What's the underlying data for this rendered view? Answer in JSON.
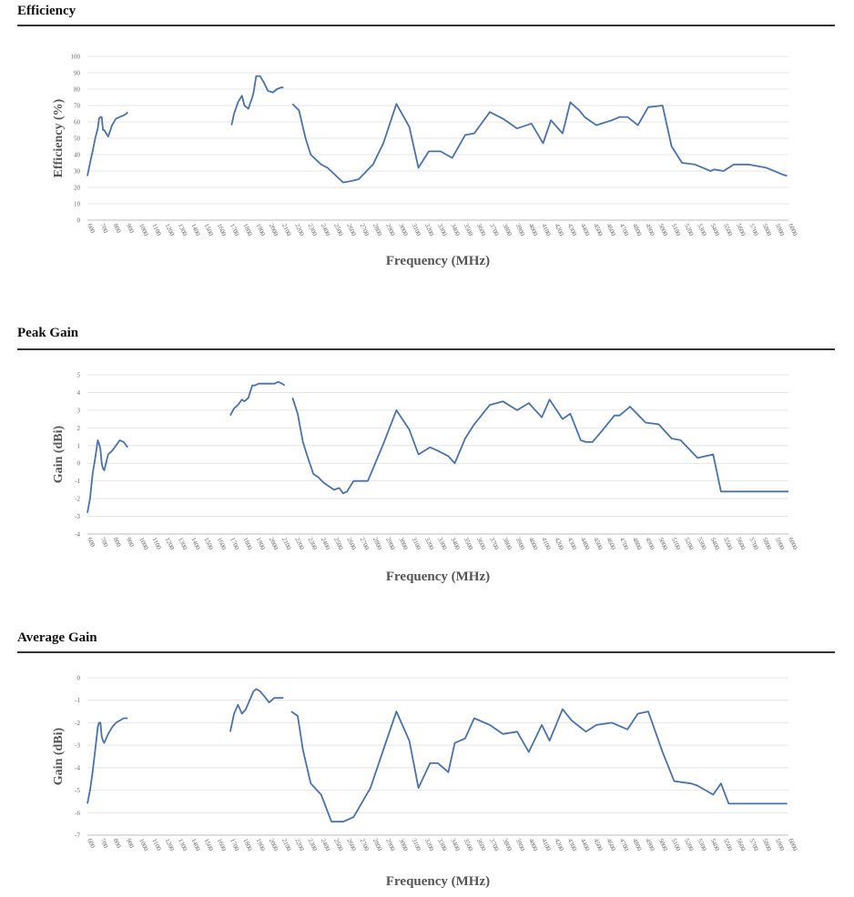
{
  "sections": [
    {
      "title": "Efficiency"
    },
    {
      "title": "Peak Gain"
    },
    {
      "title": "Average Gain"
    }
  ],
  "colors": {
    "line": "#4a72a8",
    "grid": "#e4e4e4",
    "axis": "#bdbdbd"
  },
  "chart_data": [
    {
      "type": "line",
      "title": "Efficiency",
      "xlabel": "Frequency (MHz)",
      "ylabel": "Efficiency (%)",
      "ylim": [
        0,
        100
      ],
      "yticks": [
        "0",
        "10",
        "20",
        "30",
        "40",
        "50",
        "60",
        "70",
        "80",
        "90",
        "100"
      ],
      "xlim": [
        600,
        6000
      ],
      "xticks": [
        "600",
        "700",
        "800",
        "900",
        "1000",
        "1100",
        "1200",
        "1300",
        "1400",
        "1500",
        "1600",
        "1700",
        "1800",
        "1900",
        "2000",
        "2100",
        "2200",
        "2300",
        "2400",
        "2500",
        "2600",
        "2700",
        "2800",
        "2900",
        "3000",
        "3100",
        "3200",
        "3300",
        "3400",
        "3500",
        "3600",
        "3700",
        "3800",
        "3900",
        "4000",
        "4100",
        "4200",
        "4300",
        "4400",
        "4500",
        "4600",
        "4700",
        "4800",
        "4900",
        "5000",
        "5100",
        "5200",
        "5300",
        "5400",
        "5500",
        "5600",
        "5700",
        "5800",
        "5900",
        "6000"
      ],
      "grid": true,
      "series": [
        {
          "x": [
            600,
            620,
            640,
            660,
            680,
            690,
            700,
            710,
            720,
            730,
            760,
            790,
            820,
            850,
            880,
            900,
            910
          ],
          "y": [
            27,
            35,
            42,
            50,
            56,
            62,
            63,
            63,
            55,
            55,
            51,
            58,
            62,
            63,
            64,
            65,
            66
          ]
        },
        {
          "x": [
            1710,
            1730,
            1760,
            1790,
            1810,
            1840,
            1870,
            1880,
            1900,
            1930,
            1960,
            1990,
            2030,
            2060,
            2090,
            2110
          ],
          "y": [
            58,
            65,
            72,
            76,
            70,
            68,
            75,
            78,
            88,
            88,
            84,
            79,
            78,
            80,
            81,
            81
          ]
        },
        {
          "x": [
            2180,
            2230,
            2280,
            2320,
            2400,
            2450,
            2570,
            2640,
            2690,
            2800,
            2880,
            2980,
            3080,
            3150,
            3230,
            3320,
            3410,
            3510,
            3580,
            3700,
            3800,
            3910,
            4020,
            4110,
            4170,
            4260,
            4320,
            4390,
            4430,
            4520,
            4640,
            4700,
            4760,
            4840,
            4920,
            5030,
            5100,
            5180,
            5280,
            5400,
            5430,
            5500,
            5580,
            5690,
            5830,
            5950,
            5990
          ],
          "y": [
            71,
            67,
            50,
            40,
            34,
            32,
            23,
            24,
            25,
            34,
            47,
            71,
            57,
            32,
            42,
            42,
            38,
            52,
            53,
            66,
            62,
            56,
            59,
            47,
            61,
            53,
            72,
            67,
            63,
            58,
            61,
            63,
            63,
            58,
            69,
            70,
            45,
            35,
            34,
            30,
            31,
            30,
            34,
            34,
            32,
            28,
            27
          ]
        }
      ]
    },
    {
      "type": "line",
      "title": "Peak Gain",
      "xlabel": "Frequency (MHz)",
      "ylabel": "Gain (dBi)",
      "ylim": [
        -4,
        5
      ],
      "yticks": [
        "-4",
        "-3",
        "-2",
        "-1",
        "0",
        "1",
        "2",
        "3",
        "4",
        "5"
      ],
      "xlim": [
        600,
        6000
      ],
      "xticks": [
        "600",
        "700",
        "800",
        "900",
        "1000",
        "1100",
        "1200",
        "1300",
        "1400",
        "1500",
        "1600",
        "1700",
        "1800",
        "1900",
        "2000",
        "2100",
        "2200",
        "2300",
        "2400",
        "2500",
        "2600",
        "2700",
        "2800",
        "2900",
        "3000",
        "3100",
        "3200",
        "3300",
        "3400",
        "3500",
        "3600",
        "3700",
        "3800",
        "3900",
        "4000",
        "4100",
        "4200",
        "4300",
        "4400",
        "4500",
        "4600",
        "4700",
        "4800",
        "4900",
        "5000",
        "5100",
        "5200",
        "5300",
        "5400",
        "5500",
        "5600",
        "5700",
        "5800",
        "5900",
        "6000"
      ],
      "grid": true,
      "series": [
        {
          "x": [
            600,
            620,
            640,
            660,
            680,
            690,
            700,
            710,
            720,
            730,
            760,
            790,
            820,
            850,
            880,
            900,
            910
          ],
          "y": [
            -2.8,
            -2.0,
            -0.6,
            0.3,
            1.3,
            1.1,
            0.8,
            0.0,
            -0.3,
            -0.4,
            0.5,
            0.7,
            1.0,
            1.3,
            1.2,
            1.0,
            0.9
          ]
        },
        {
          "x": [
            1700,
            1730,
            1760,
            1790,
            1810,
            1840,
            1870,
            1890,
            1920,
            1960,
            2000,
            2040,
            2070,
            2100,
            2120
          ],
          "y": [
            2.7,
            3.1,
            3.3,
            3.6,
            3.5,
            3.7,
            4.4,
            4.4,
            4.5,
            4.5,
            4.5,
            4.5,
            4.6,
            4.5,
            4.4
          ]
        },
        {
          "x": [
            2180,
            2220,
            2260,
            2290,
            2340,
            2380,
            2420,
            2460,
            2500,
            2540,
            2570,
            2600,
            2650,
            2700,
            2760,
            2880,
            2980,
            3080,
            3150,
            3240,
            3300,
            3380,
            3430,
            3510,
            3580,
            3700,
            3800,
            3910,
            4000,
            4100,
            4160,
            4260,
            4320,
            4400,
            4440,
            4490,
            4560,
            4660,
            4700,
            4780,
            4900,
            5000,
            5100,
            5170,
            5300,
            5420,
            5480,
            5540,
            5640,
            5700,
            5820,
            5950,
            6000
          ],
          "y": [
            3.7,
            2.8,
            1.2,
            0.5,
            -0.6,
            -0.8,
            -1.1,
            -1.3,
            -1.5,
            -1.4,
            -1.7,
            -1.6,
            -1.0,
            -1.0,
            -1.0,
            1.1,
            3.0,
            1.9,
            0.5,
            0.9,
            0.7,
            0.4,
            0.0,
            1.4,
            2.2,
            3.3,
            3.5,
            3.0,
            3.4,
            2.6,
            3.6,
            2.5,
            2.8,
            1.3,
            1.2,
            1.2,
            1.8,
            2.7,
            2.7,
            3.2,
            2.3,
            2.2,
            1.4,
            1.3,
            0.3,
            0.5,
            -1.6,
            -1.6,
            -1.6,
            -1.6,
            -1.6,
            -1.6,
            -1.6
          ]
        }
      ]
    },
    {
      "type": "line",
      "title": "Average Gain",
      "xlabel": "Frequency (MHz)",
      "ylabel": "Gain (dBi)",
      "ylim": [
        -7,
        0
      ],
      "yticks": [
        "-7",
        "-6",
        "-5",
        "-4",
        "-3",
        "-2",
        "-1",
        "0"
      ],
      "xlim": [
        600,
        6000
      ],
      "xticks": [
        "600",
        "700",
        "800",
        "900",
        "1000",
        "1100",
        "1200",
        "1300",
        "1400",
        "1500",
        "1600",
        "1700",
        "1800",
        "1900",
        "2000",
        "2100",
        "2200",
        "2300",
        "2400",
        "2500",
        "2600",
        "2700",
        "2800",
        "2900",
        "3000",
        "3100",
        "3200",
        "3300",
        "3400",
        "3500",
        "3600",
        "3700",
        "3800",
        "3900",
        "4000",
        "4100",
        "4200",
        "4300",
        "4400",
        "4500",
        "4600",
        "4700",
        "4800",
        "4900",
        "5000",
        "5100",
        "5200",
        "5300",
        "5400",
        "5500",
        "5600",
        "5700",
        "5800",
        "5900",
        "6000"
      ],
      "grid": true,
      "series": [
        {
          "x": [
            600,
            620,
            640,
            660,
            680,
            690,
            700,
            710,
            720,
            730,
            760,
            790,
            820,
            850,
            880,
            900,
            910
          ],
          "y": [
            -5.6,
            -5.0,
            -4.2,
            -3.2,
            -2.2,
            -2.0,
            -2.0,
            -2.6,
            -2.8,
            -2.9,
            -2.5,
            -2.2,
            -2.0,
            -1.9,
            -1.8,
            -1.8,
            -1.8
          ]
        },
        {
          "x": [
            1700,
            1730,
            1760,
            1790,
            1820,
            1850,
            1880,
            1900,
            1930,
            1960,
            2000,
            2040,
            2080,
            2110
          ],
          "y": [
            -2.4,
            -1.6,
            -1.2,
            -1.6,
            -1.4,
            -1.0,
            -0.6,
            -0.5,
            -0.6,
            -0.8,
            -1.1,
            -0.9,
            -0.9,
            -0.9
          ]
        },
        {
          "x": [
            2170,
            2220,
            2260,
            2320,
            2400,
            2480,
            2540,
            2570,
            2650,
            2780,
            2880,
            2980,
            3080,
            3150,
            3240,
            3300,
            3380,
            3430,
            3510,
            3580,
            3700,
            3800,
            3910,
            4000,
            4100,
            4160,
            4260,
            4330,
            4440,
            4520,
            4640,
            4760,
            4840,
            4920,
            5030,
            5120,
            5250,
            5300,
            5420,
            5480,
            5540,
            5630,
            5690,
            5770,
            5830,
            5950,
            5990
          ],
          "y": [
            -1.5,
            -1.7,
            -3.2,
            -4.7,
            -5.2,
            -6.4,
            -6.4,
            -6.4,
            -6.2,
            -4.9,
            -3.2,
            -1.5,
            -2.8,
            -4.9,
            -3.8,
            -3.8,
            -4.2,
            -2.9,
            -2.7,
            -1.8,
            -2.1,
            -2.5,
            -2.4,
            -3.3,
            -2.1,
            -2.8,
            -1.4,
            -1.9,
            -2.4,
            -2.1,
            -2.0,
            -2.3,
            -1.6,
            -1.5,
            -3.3,
            -4.6,
            -4.7,
            -4.8,
            -5.2,
            -4.7,
            -5.6,
            -5.6,
            -5.6,
            -5.6,
            -5.6,
            -5.6,
            -5.6
          ]
        }
      ]
    }
  ]
}
